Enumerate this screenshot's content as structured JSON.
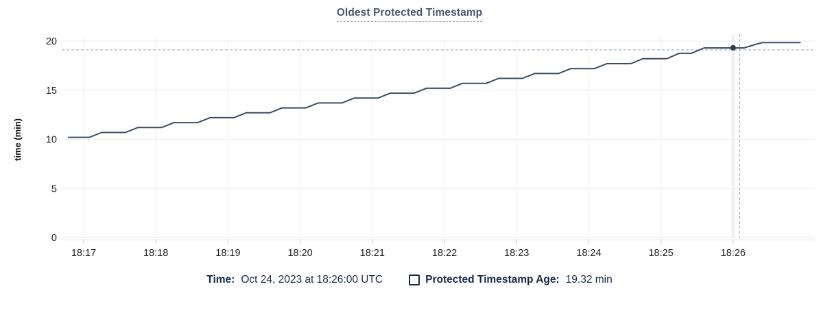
{
  "title": "Oldest Protected Timestamp",
  "colors": {
    "title": "#475872",
    "title_underline": "#9aa7ba",
    "grid": "#ececec",
    "axis_line": "#e2e2e2",
    "tick_mark": "#c9c9c9",
    "axis_text": "#1f1f1f",
    "line": "#3a4b66",
    "dot": "#2c3d59",
    "crosshair": "#9fb0c0",
    "highlight_band": "#f3f3f3",
    "legend_text": "#16294b"
  },
  "chart_data": {
    "type": "line",
    "title": "Oldest Protected Timestamp",
    "xlabel": "",
    "ylabel": "time (min)",
    "ylim": [
      0,
      20
    ],
    "yticks": [
      0,
      5,
      10,
      15,
      20
    ],
    "xticks": [
      "18:17",
      "18:18",
      "18:19",
      "18:20",
      "18:21",
      "18:22",
      "18:23",
      "18:24",
      "18:25",
      "18:26"
    ],
    "grid": true,
    "legend_position": "bottom",
    "series": [
      {
        "name": "Protected Timestamp Age",
        "color": "#3a4b66",
        "points": [
          [
            -0.21,
            10.2
          ],
          [
            0.08,
            10.2
          ],
          [
            0.25,
            10.7
          ],
          [
            0.58,
            10.7
          ],
          [
            0.75,
            11.2
          ],
          [
            1.08,
            11.2
          ],
          [
            1.25,
            11.7
          ],
          [
            1.58,
            11.7
          ],
          [
            1.75,
            12.2
          ],
          [
            2.08,
            12.2
          ],
          [
            2.25,
            12.7
          ],
          [
            2.58,
            12.7
          ],
          [
            2.75,
            13.2
          ],
          [
            3.08,
            13.2
          ],
          [
            3.25,
            13.7
          ],
          [
            3.58,
            13.7
          ],
          [
            3.75,
            14.2
          ],
          [
            4.08,
            14.2
          ],
          [
            4.25,
            14.7
          ],
          [
            4.58,
            14.7
          ],
          [
            4.75,
            15.2
          ],
          [
            5.08,
            15.2
          ],
          [
            5.25,
            15.7
          ],
          [
            5.58,
            15.7
          ],
          [
            5.75,
            16.2
          ],
          [
            6.08,
            16.2
          ],
          [
            6.25,
            16.7
          ],
          [
            6.58,
            16.7
          ],
          [
            6.75,
            17.2
          ],
          [
            7.08,
            17.2
          ],
          [
            7.25,
            17.7
          ],
          [
            7.58,
            17.7
          ],
          [
            7.75,
            18.2
          ],
          [
            8.08,
            18.2
          ],
          [
            8.25,
            18.75
          ],
          [
            8.42,
            18.75
          ],
          [
            8.6,
            19.3
          ],
          [
            9.15,
            19.3
          ],
          [
            9.4,
            19.85
          ],
          [
            9.93,
            19.85
          ]
        ]
      }
    ],
    "cursor": {
      "t": 9.09,
      "v": 19.1,
      "snap_t": 9.0
    },
    "hover_point": {
      "t": 9.0,
      "v": 19.32,
      "x_label": "18:26",
      "value_label": "19.32 min"
    }
  },
  "legend": {
    "time_label": "Time:",
    "time_value": "Oct 24, 2023 at 18:26:00 UTC",
    "series_label": "Protected Timestamp Age:",
    "series_value": "19.32 min"
  }
}
